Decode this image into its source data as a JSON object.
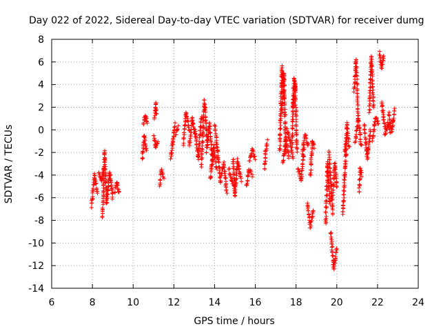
{
  "chart_data": {
    "type": "scatter",
    "title": "Day 022 of 2022, Sidereal Day-to-day VTEC variation (SDTVAR) for receiver dumg",
    "xlabel": "GPS time / hours",
    "ylabel": "SDTVAR / TECUs",
    "xlim": [
      6,
      24
    ],
    "ylim": [
      -14,
      8
    ],
    "xticks": [
      6,
      8,
      10,
      12,
      14,
      16,
      18,
      20,
      22,
      24
    ],
    "yticks": [
      -14,
      -12,
      -10,
      -8,
      -6,
      -4,
      -2,
      0,
      2,
      4,
      6,
      8
    ],
    "grid": true,
    "marker": "+",
    "colors": {
      "marker": "#ff0000",
      "grid": "#a0a0a0",
      "axis": "#000000"
    },
    "series": [
      {
        "name": "SDTVAR",
        "segments": [
          {
            "x": [
              7.95,
              8.1,
              8.25
            ],
            "y": [
              -6.8,
              -4.0,
              -5.5
            ]
          },
          {
            "x": [
              8.3,
              8.45,
              8.55
            ],
            "y": [
              -3.8,
              -4.5,
              -3.5
            ]
          },
          {
            "x": [
              8.5,
              8.6,
              8.7
            ],
            "y": [
              -7.8,
              -2.0,
              -6.5
            ]
          },
          {
            "x": [
              8.7,
              8.85,
              9.0
            ],
            "y": [
              -6.5,
              -3.8,
              -6.0
            ]
          },
          {
            "x": [
              9.1,
              9.2,
              9.3
            ],
            "y": [
              -5.5,
              -4.6,
              -5.6
            ]
          },
          {
            "x": [
              10.45,
              10.55,
              10.65
            ],
            "y": [
              -2.6,
              -0.5,
              -1.8
            ]
          },
          {
            "x": [
              10.5,
              10.6,
              10.7
            ],
            "y": [
              0.6,
              1.2,
              0.6
            ]
          },
          {
            "x": [
              11.0,
              11.1,
              11.2
            ],
            "y": [
              -0.5,
              -1.5,
              -1.0
            ]
          },
          {
            "x": [
              11.05,
              11.1,
              11.15
            ],
            "y": [
              1.0,
              2.3,
              1.3
            ]
          },
          {
            "x": [
              11.3,
              11.4,
              11.5
            ],
            "y": [
              -4.8,
              -3.6,
              -4.2
            ]
          },
          {
            "x": [
              11.85,
              11.95,
              12.05
            ],
            "y": [
              -2.6,
              -1.0,
              0.5
            ]
          },
          {
            "x": [
              12.1,
              12.2
            ],
            "y": [
              -0.5,
              0.2
            ]
          },
          {
            "x": [
              12.45,
              12.6,
              12.75
            ],
            "y": [
              -1.2,
              1.5,
              0.0
            ]
          },
          {
            "x": [
              12.75,
              12.9,
              13.05
            ],
            "y": [
              -1.5,
              1.0,
              -0.5
            ]
          },
          {
            "x": [
              13.05,
              13.2,
              13.35
            ],
            "y": [
              0.0,
              -2.5,
              1.2
            ]
          },
          {
            "x": [
              13.35,
              13.5,
              13.65
            ],
            "y": [
              -3.2,
              2.5,
              -1.5
            ]
          },
          {
            "x": [
              13.6,
              13.75,
              13.9
            ],
            "y": [
              -2.0,
              0.5,
              -3.0
            ]
          },
          {
            "x": [
              13.8,
              13.95,
              14.1
            ],
            "y": [
              -4.4,
              -1.5,
              -3.5
            ]
          },
          {
            "x": [
              14.0,
              14.15,
              14.3
            ],
            "y": [
              0.5,
              -2.0,
              -4.8
            ]
          },
          {
            "x": [
              14.3,
              14.45,
              14.6
            ],
            "y": [
              -4.0,
              -3.0,
              -5.5
            ]
          },
          {
            "x": [
              14.7,
              14.85,
              15.0
            ],
            "y": [
              -3.5,
              -4.5,
              -5.0
            ]
          },
          {
            "x": [
              14.9,
              15.0,
              15.1
            ],
            "y": [
              -2.5,
              -5.8,
              -3.0
            ]
          },
          {
            "x": [
              15.1,
              15.2,
              15.3
            ],
            "y": [
              -2.5,
              -3.5,
              -4.5
            ]
          },
          {
            "x": [
              15.55,
              15.7,
              15.85
            ],
            "y": [
              -5.0,
              -3.5,
              -4.0
            ]
          },
          {
            "x": [
              15.7,
              15.85,
              16.0
            ],
            "y": [
              -2.8,
              -1.8,
              -2.5
            ]
          },
          {
            "x": [
              16.45,
              16.5,
              16.6
            ],
            "y": [
              -3.5,
              -2.0,
              -1.0
            ]
          },
          {
            "x": [
              17.2,
              17.3,
              17.4
            ],
            "y": [
              -1.8,
              5.5,
              3.0
            ]
          },
          {
            "x": [
              17.3,
              17.4,
              17.5
            ],
            "y": [
              1.5,
              5.0,
              -2.0
            ]
          },
          {
            "x": [
              17.35,
              17.5,
              17.65
            ],
            "y": [
              -3.0,
              -0.8,
              -2.5
            ]
          },
          {
            "x": [
              17.55,
              17.7,
              17.85
            ],
            "y": [
              0.0,
              -1.0,
              -2.5
            ]
          },
          {
            "x": [
              17.8,
              17.9,
              18.0
            ],
            "y": [
              -1.5,
              4.5,
              3.5
            ]
          },
          {
            "x": [
              17.85,
              17.95,
              18.05
            ],
            "y": [
              2.0,
              4.0,
              -2.0
            ]
          },
          {
            "x": [
              18.1,
              18.25,
              18.4
            ],
            "y": [
              -3.5,
              -4.5,
              -1.5
            ]
          },
          {
            "x": [
              18.3,
              18.45,
              18.6
            ],
            "y": [
              -2.0,
              -0.5,
              -1.5
            ]
          },
          {
            "x": [
              18.55,
              18.7,
              18.85
            ],
            "y": [
              -6.5,
              -8.5,
              -7.0
            ]
          },
          {
            "x": [
              18.7,
              18.8,
              18.9
            ],
            "y": [
              -4.0,
              -1.0,
              -1.5
            ]
          },
          {
            "x": [
              19.45,
              19.55,
              19.65
            ],
            "y": [
              -8.3,
              -3.0,
              -6.5
            ]
          },
          {
            "x": [
              19.6,
              19.7,
              19.8
            ],
            "y": [
              -2.0,
              -4.5,
              -7.5
            ]
          },
          {
            "x": [
              19.7,
              19.85,
              20.0
            ],
            "y": [
              -9.0,
              -12.3,
              -10.5
            ]
          },
          {
            "x": [
              19.8,
              19.9,
              20.0
            ],
            "y": [
              -6.0,
              -3.0,
              -5.0
            ]
          },
          {
            "x": [
              20.3,
              20.4,
              20.5
            ],
            "y": [
              -7.5,
              -3.5,
              -0.5
            ]
          },
          {
            "x": [
              20.4,
              20.5,
              20.6
            ],
            "y": [
              -2.0,
              0.5,
              -1.5
            ]
          },
          {
            "x": [
              20.85,
              20.95,
              21.05
            ],
            "y": [
              3.5,
              6.2,
              1.0
            ]
          },
          {
            "x": [
              20.9,
              21.05,
              21.2
            ],
            "y": [
              -1.0,
              1.0,
              -1.5
            ]
          },
          {
            "x": [
              21.1,
              21.15,
              21.25
            ],
            "y": [
              -5.5,
              -3.5,
              -4.0
            ]
          },
          {
            "x": [
              21.35,
              21.5,
              21.65
            ],
            "y": [
              0.5,
              -2.5,
              0.0
            ]
          },
          {
            "x": [
              21.6,
              21.7,
              21.8
            ],
            "y": [
              1.5,
              6.5,
              2.0
            ]
          },
          {
            "x": [
              21.75,
              21.9,
              22.05
            ],
            "y": [
              -1.0,
              1.0,
              0.5
            ]
          },
          {
            "x": [
              22.1,
              22.2,
              22.3
            ],
            "y": [
              6.8,
              5.5,
              6.6
            ]
          },
          {
            "x": [
              22.2,
              22.3,
              22.4
            ],
            "y": [
              2.5,
              1.0,
              0.0
            ]
          },
          {
            "x": [
              22.35,
              22.5,
              22.65
            ],
            "y": [
              -0.5,
              0.5,
              -0.3
            ]
          },
          {
            "x": [
              22.55,
              22.7,
              22.85
            ],
            "y": [
              1.5,
              0.0,
              1.8
            ]
          }
        ]
      }
    ]
  }
}
